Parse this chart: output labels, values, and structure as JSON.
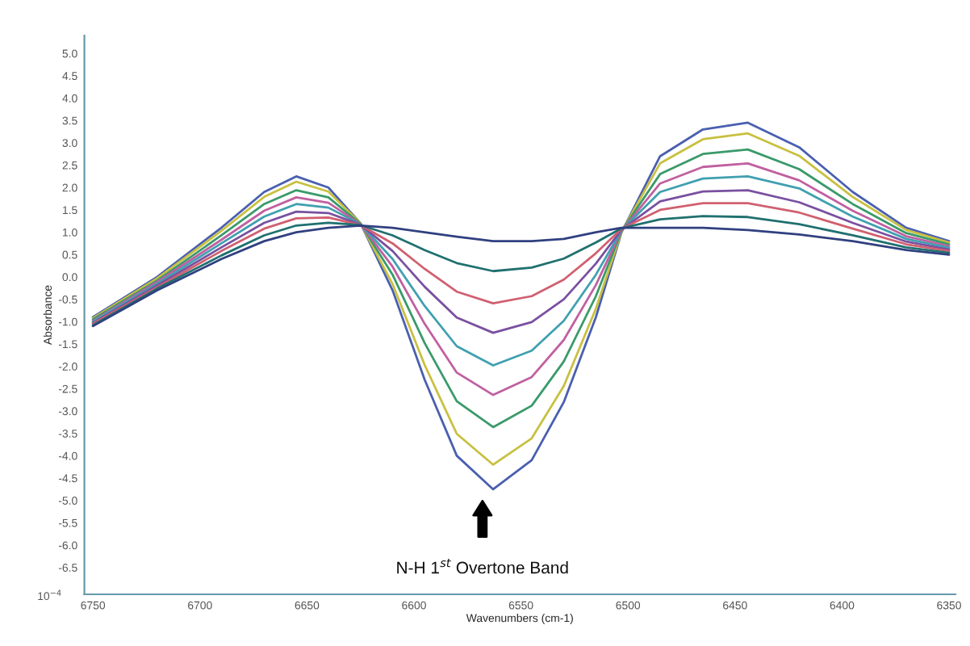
{
  "chart_data": {
    "type": "line",
    "xlabel": "Wavenumbers (cm-1)",
    "ylabel": "Absorbance",
    "x": [
      6750,
      6720,
      6690,
      6670,
      6655,
      6640,
      6625,
      6610,
      6595,
      6580,
      6563,
      6545,
      6530,
      6515,
      6503,
      6485,
      6465,
      6444,
      6420,
      6395,
      6370,
      6350
    ],
    "series": [
      {
        "color": "#4a5fb0",
        "values": [
          -0.9,
          0.0,
          1.1,
          1.9,
          2.25,
          2.0,
          1.2,
          -0.3,
          -2.3,
          -4.0,
          -4.75,
          -4.1,
          -2.8,
          -0.9,
          1.0,
          2.7,
          3.3,
          3.45,
          2.9,
          1.9,
          1.1,
          0.8
        ]
      },
      {
        "color": "#c8c040",
        "values": [
          -0.92,
          -0.03,
          1.03,
          1.79,
          2.13,
          1.91,
          1.2,
          -0.16,
          -1.97,
          -3.51,
          -4.2,
          -3.61,
          -2.44,
          -0.71,
          1.01,
          2.54,
          3.08,
          3.21,
          2.71,
          1.79,
          1.05,
          0.77
        ]
      },
      {
        "color": "#3a9a6a",
        "values": [
          -0.95,
          -0.08,
          0.93,
          1.63,
          1.94,
          1.78,
          1.19,
          0.05,
          -1.48,
          -2.78,
          -3.36,
          -2.88,
          -1.89,
          -0.43,
          1.03,
          2.3,
          2.75,
          2.85,
          2.41,
          1.63,
          0.98,
          0.73
        ]
      },
      {
        "color": "#c060a0",
        "values": [
          -0.98,
          -0.11,
          0.83,
          1.48,
          1.78,
          1.66,
          1.18,
          0.23,
          -1.05,
          -2.14,
          -2.64,
          -2.24,
          -1.41,
          -0.18,
          1.04,
          2.09,
          2.46,
          2.54,
          2.16,
          1.48,
          0.91,
          0.69
        ]
      },
      {
        "color": "#40a0b0",
        "values": [
          -1.0,
          -0.15,
          0.75,
          1.35,
          1.63,
          1.55,
          1.18,
          0.4,
          -0.65,
          -1.55,
          -1.98,
          -1.65,
          -0.98,
          0.05,
          1.05,
          1.9,
          2.2,
          2.25,
          1.98,
          1.35,
          0.85,
          0.65
        ]
      },
      {
        "color": "#7a50a0",
        "values": [
          -1.03,
          -0.19,
          0.66,
          1.21,
          1.46,
          1.43,
          1.17,
          0.58,
          -0.22,
          -0.91,
          -1.25,
          -1.01,
          -0.5,
          0.3,
          1.06,
          1.69,
          1.91,
          1.94,
          1.67,
          1.21,
          0.79,
          0.61
        ]
      },
      {
        "color": "#d06070",
        "values": [
          -1.05,
          -0.23,
          0.58,
          1.08,
          1.31,
          1.33,
          1.16,
          0.75,
          0.18,
          -0.33,
          -0.59,
          -0.43,
          -0.06,
          0.53,
          1.08,
          1.5,
          1.65,
          1.65,
          1.44,
          1.08,
          0.73,
          0.58
        ]
      },
      {
        "color": "#207070",
        "values": [
          -1.08,
          -0.26,
          0.48,
          0.93,
          1.15,
          1.21,
          1.16,
          0.93,
          0.6,
          0.31,
          0.13,
          0.21,
          0.41,
          0.77,
          1.09,
          1.29,
          1.36,
          1.34,
          1.18,
          0.93,
          0.66,
          0.54
        ]
      },
      {
        "color": "#304080",
        "values": [
          -1.1,
          -0.3,
          0.4,
          0.8,
          1.0,
          1.1,
          1.15,
          1.1,
          1.0,
          0.9,
          0.8,
          0.8,
          0.85,
          1.0,
          1.1,
          1.1,
          1.1,
          1.05,
          0.95,
          0.8,
          0.6,
          0.5
        ]
      }
    ],
    "xlim": [
      6754,
      6347
    ],
    "ylim": [
      -7.1,
      5.4
    ],
    "xticks": [
      6750,
      6700,
      6650,
      6600,
      6550,
      6500,
      6450,
      6400,
      6350
    ],
    "yticks": [
      {
        "value": 5,
        "label": "5.0"
      },
      4.5,
      {
        "value": 4,
        "label": "4.0"
      },
      3.5,
      {
        "value": 3,
        "label": "3.0"
      },
      2.5,
      {
        "value": 2,
        "label": "2.0"
      },
      1.5,
      {
        "value": 1,
        "label": "1.0"
      },
      0.5,
      {
        "value": 0,
        "label": "0.0"
      },
      -0.5,
      {
        "value": -1,
        "label": "-1.0"
      },
      -1.5,
      {
        "value": -2,
        "label": "-2.0"
      },
      -2.5,
      {
        "value": -3,
        "label": "-3.0"
      },
      -3.5,
      {
        "value": -4,
        "label": "-4.0"
      },
      -4.5,
      {
        "value": -5,
        "label": "-5.0"
      },
      -5.5,
      {
        "value": -6,
        "label": "-6.0"
      },
      -6.5
    ],
    "annotations": [
      "N-H 1$^{st}$ Overtone Band",
      "10$^{−4}$"
    ],
    "grid": false,
    "legend": false,
    "marker": "none",
    "line_style": "solid"
  }
}
